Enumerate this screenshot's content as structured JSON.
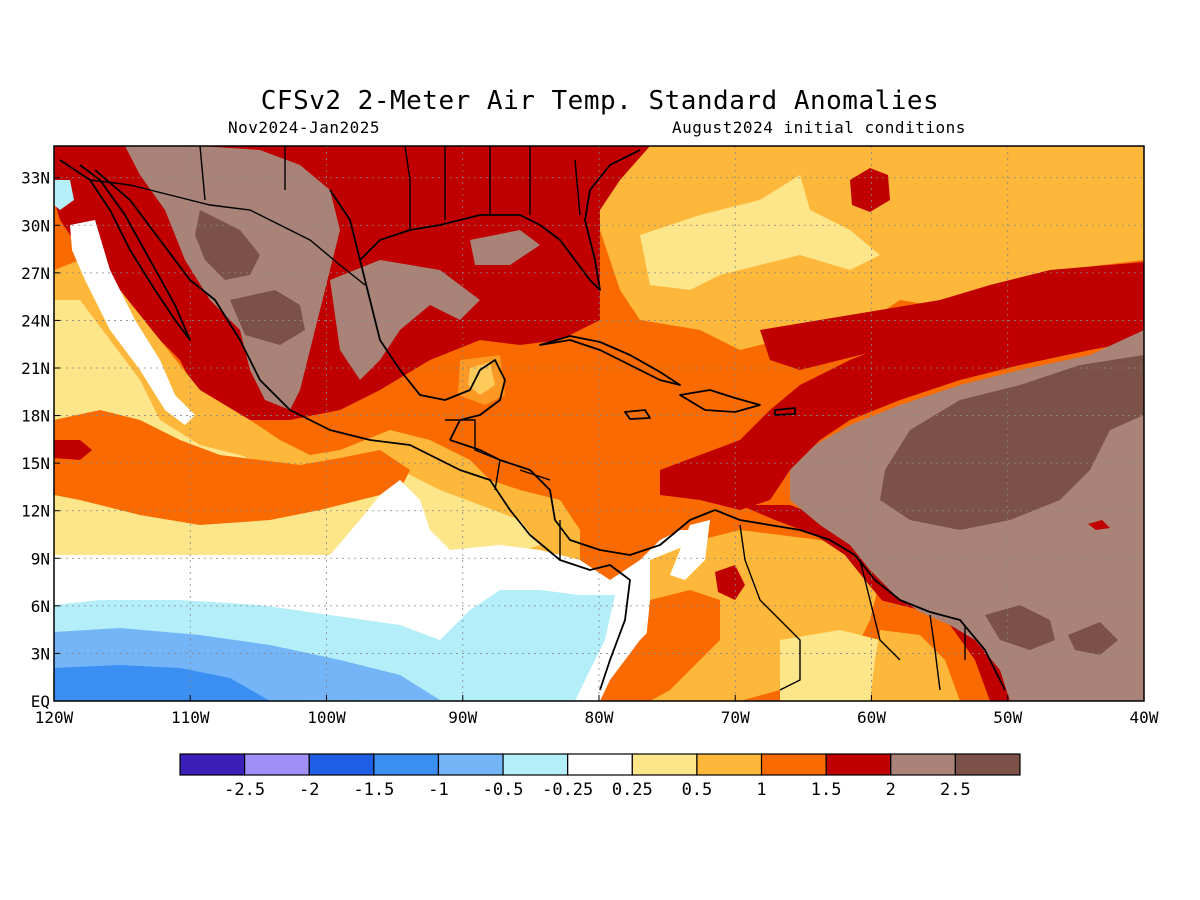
{
  "title": "CFSv2 2-Meter Air Temp. Standard Anomalies",
  "subtitle_left": "Nov2024-Jan2025",
  "subtitle_right": "August2024 initial conditions",
  "map": {
    "lon_range": [
      -120,
      -40
    ],
    "lat_range": [
      0,
      35
    ],
    "lat_ticks": [
      {
        "value": 33,
        "label": "33N"
      },
      {
        "value": 30,
        "label": "30N"
      },
      {
        "value": 27,
        "label": "27N"
      },
      {
        "value": 24,
        "label": "24N"
      },
      {
        "value": 21,
        "label": "21N"
      },
      {
        "value": 18,
        "label": "18N"
      },
      {
        "value": 15,
        "label": "15N"
      },
      {
        "value": 12,
        "label": "12N"
      },
      {
        "value": 9,
        "label": "9N"
      },
      {
        "value": 6,
        "label": "6N"
      },
      {
        "value": 3,
        "label": "3N"
      },
      {
        "value": 0,
        "label": "EQ"
      }
    ],
    "lon_ticks": [
      {
        "value": -120,
        "label": "120W"
      },
      {
        "value": -110,
        "label": "110W"
      },
      {
        "value": -100,
        "label": "100W"
      },
      {
        "value": -90,
        "label": "90W"
      },
      {
        "value": -80,
        "label": "80W"
      },
      {
        "value": -70,
        "label": "70W"
      },
      {
        "value": -60,
        "label": "60W"
      },
      {
        "value": -50,
        "label": "50W"
      },
      {
        "value": -40,
        "label": "40W"
      }
    ],
    "grid": true
  },
  "colorbar": {
    "colors": [
      "#3b1fb8",
      "#9f8ff7",
      "#1f5fe6",
      "#3c8ff2",
      "#74b5f7",
      "#b4eef8",
      "#ffffff",
      "#fde58a",
      "#fdb83c",
      "#f96a00",
      "#c00000",
      "#a98378",
      "#7b5148"
    ],
    "labels": [
      "-2.5",
      "-2",
      "-1.5",
      "-1",
      "-0.5",
      "-0.25",
      "0.25",
      "0.5",
      "1",
      "1.5",
      "2",
      "2.5"
    ]
  },
  "colors": {
    "strong_warm": "#7b5148",
    "very_warm": "#a98378",
    "warm_2": "#c00000",
    "warm_15": "#f96a00",
    "warm_1": "#fdb83c",
    "warm_05": "#fde58a",
    "neutral": "#ffffff",
    "cool_025": "#b4eef8",
    "cool_05": "#74b5f7",
    "cool_1": "#3c8ff2"
  }
}
